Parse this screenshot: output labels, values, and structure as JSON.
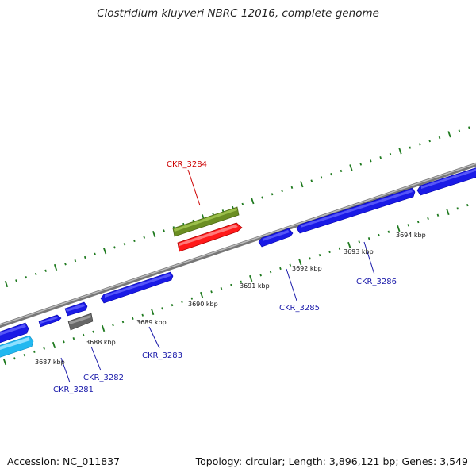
{
  "title": "Clostridium kluyveri NBRC 12016, complete genome",
  "footer": {
    "accession": "Accession: NC_011837",
    "summary": "Topology: circular; Length: 3,896,121 bp; Genes: 3,549"
  },
  "colors": {
    "backbone": "#8a8a8a",
    "tick": "#1f7a1f",
    "cds": "#1a1ae6",
    "selected_gene": "#ff1a1a",
    "highlight_gene": "#6b8e23",
    "pseudo_gene": "#666666",
    "rna_gene": "#22b8f0",
    "label_forward": "#cc0000",
    "label_reverse": "#1a1aaa"
  },
  "scale_labels": [
    "3687 kbp",
    "3688 kbp",
    "3689 kbp",
    "3690 kbp",
    "3691 kbp",
    "3692 kbp",
    "3693 kbp",
    "3694 kbp"
  ],
  "gene_labels": {
    "forward": [
      "CKR_3284"
    ],
    "reverse": [
      "CKR_3281",
      "CKR_3282",
      "CKR_3283",
      "CKR_3285",
      "CKR_3286"
    ]
  }
}
